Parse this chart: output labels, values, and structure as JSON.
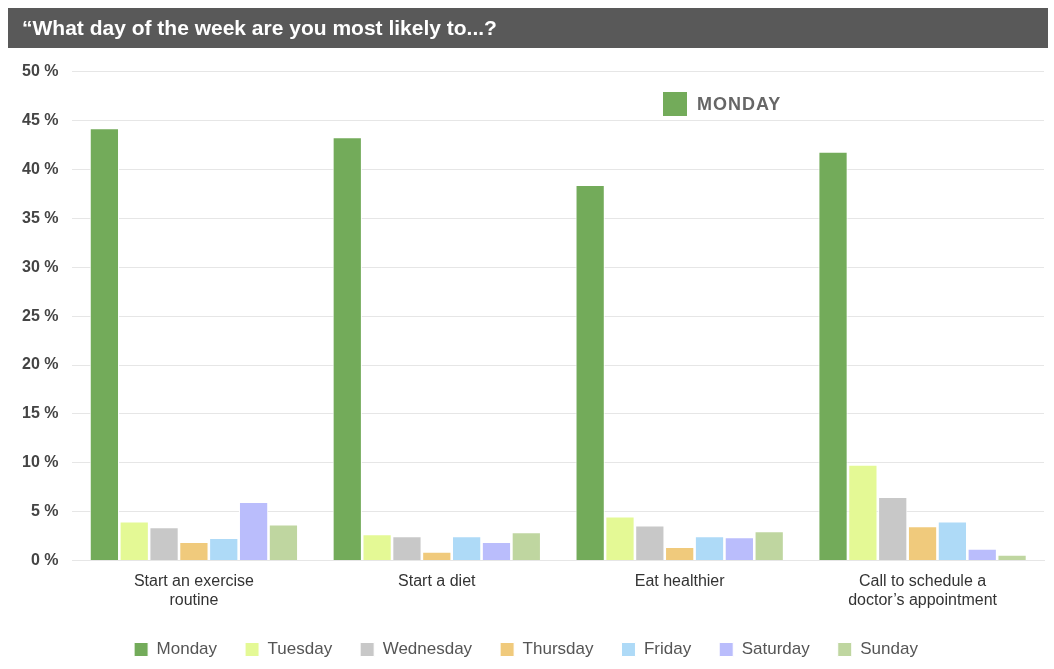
{
  "chart_data": {
    "type": "bar",
    "title": "“What day of the week are you most likely to...?",
    "categories": [
      "Start an exercise routine",
      "Start a diet",
      "Eat healthier",
      "Call to schedule a doctor’s appointment"
    ],
    "series": [
      {
        "name": "Monday",
        "color": "#73ab5a",
        "values": [
          44.2,
          43.3,
          38.4,
          41.8
        ]
      },
      {
        "name": "Tuesday",
        "color": "#e4f995",
        "values": [
          4.0,
          2.7,
          4.5,
          9.8
        ]
      },
      {
        "name": "Wednesday",
        "color": "#c8c8c8",
        "values": [
          3.4,
          2.5,
          3.6,
          6.5
        ]
      },
      {
        "name": "Thursday",
        "color": "#f0ca7c",
        "values": [
          1.9,
          0.9,
          1.4,
          3.5
        ]
      },
      {
        "name": "Friday",
        "color": "#aedaf7",
        "values": [
          2.3,
          2.5,
          2.5,
          4.0
        ]
      },
      {
        "name": "Saturday",
        "color": "#babdfc",
        "values": [
          6.0,
          1.9,
          2.4,
          1.2
        ]
      },
      {
        "name": "Sunday",
        "color": "#bfd6a0",
        "values": [
          3.7,
          2.9,
          3.0,
          0.6
        ]
      }
    ],
    "ylim": [
      0,
      50
    ],
    "yticks": [
      {
        "value": 0,
        "label": "0 %"
      },
      {
        "value": 5,
        "label": "5 %"
      },
      {
        "value": 10,
        "label": "10 %"
      },
      {
        "value": 15,
        "label": "15 %"
      },
      {
        "value": 20,
        "label": "20 %"
      },
      {
        "value": 25,
        "label": "25 %"
      },
      {
        "value": 30,
        "label": "30 %"
      },
      {
        "value": 35,
        "label": "35 %"
      },
      {
        "value": 40,
        "label": "40 %"
      },
      {
        "value": 45,
        "label": "45 %"
      },
      {
        "value": 50,
        "label": "50 %"
      }
    ],
    "grid": "y",
    "legend": "bottom",
    "annotations": [
      "MONDAY"
    ]
  }
}
